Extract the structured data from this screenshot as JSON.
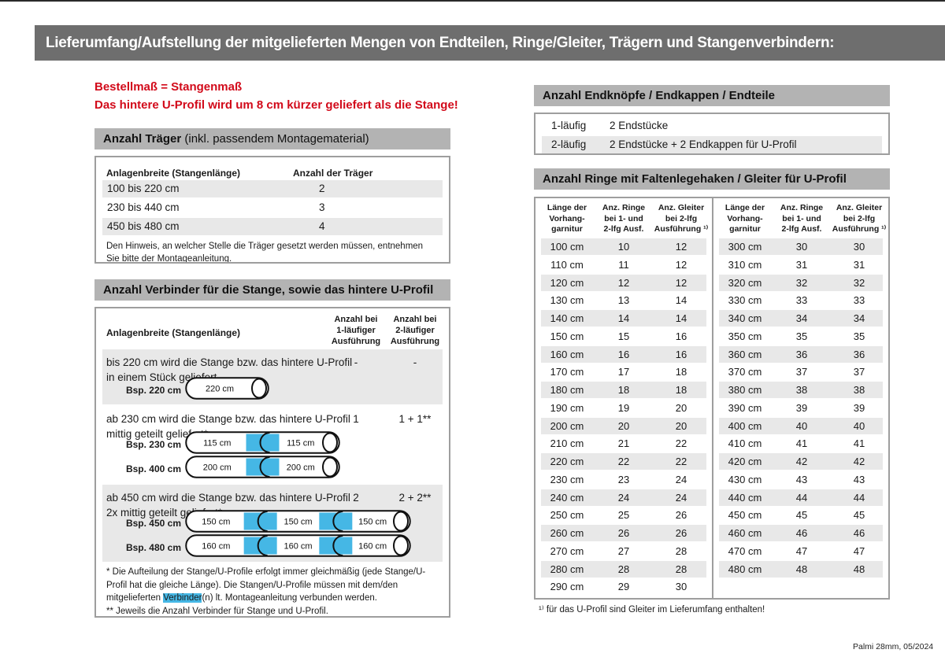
{
  "banner": {
    "title": "Lieferumfang/Aufstellung der mitgelieferten Mengen von Endteilen, Ringe/Gleiter, Trägern und Stangenverbindern:"
  },
  "colors": {
    "banner_gray": "#6e6e6e",
    "section_bar_gray": "#b3b3b3",
    "row_stripe_gray": "#e8e8e8",
    "accent_red": "#d20a1a",
    "connector_blue": "#45b7e5",
    "box_border_gray": "#9e9e9e"
  },
  "left": {
    "notice_line1": "Bestellmaß = Stangenmaß",
    "notice_line2": "Das hintere U-Profil wird um 8 cm kürzer geliefert als die Stange!",
    "traeger": {
      "header_bold": "Anzahl Träger",
      "header_rest": " (inkl. passendem Montagematerial)",
      "col1": "Anlagenbreite (Stangenlänge)",
      "col2": "Anzahl der Träger",
      "rows": [
        [
          "100 bis 220 cm",
          "2"
        ],
        [
          "230 bis 440 cm",
          "3"
        ],
        [
          "450 bis 480 cm",
          "4"
        ]
      ],
      "note": "Den Hinweis, an welcher Stelle die Träger gesetzt werden müssen, entnehmen Sie bitte der Montageanleitung."
    },
    "verbinder": {
      "header": "Anzahl Verbinder für die Stange, sowie das hintere U-Profil",
      "col1": "Anlagenbreite (Stangenlänge)",
      "col2": "Anzahl bei\n1-läufiger\nAusführung",
      "col3": "Anzahl bei\n2-läufiger\nAusführung",
      "rows": [
        {
          "text_line1": "bis 220 cm wird die Stange bzw. das hintere U-Profil",
          "text_line2": "in einem Stück geliefert",
          "val1": "-",
          "val2": "-",
          "rods": [
            {
              "label": "Bsp. 220 cm",
              "segments": [
                "220 cm"
              ]
            }
          ]
        },
        {
          "text_line1": "ab 230 cm wird die Stange bzw. das hintere U-Profil",
          "text_line2": "mittig geteilt geliefert*",
          "val1": "1",
          "val2": "1 + 1**",
          "rods": [
            {
              "label": "Bsp. 230 cm",
              "segments": [
                "115 cm",
                "115 cm"
              ]
            },
            {
              "label": "Bsp. 400 cm",
              "segments": [
                "200 cm",
                "200 cm"
              ]
            }
          ]
        },
        {
          "text_line1": "ab 450 cm wird die Stange bzw. das hintere U-Profil",
          "text_line2": "2x mittig geteilt geliefert*",
          "val1": "2",
          "val2": "2 + 2**",
          "rods": [
            {
              "label": "Bsp. 450 cm",
              "segments": [
                "150 cm",
                "150 cm",
                "150 cm"
              ]
            },
            {
              "label": "Bsp. 480 cm",
              "segments": [
                "160 cm",
                "160 cm",
                "160 cm"
              ]
            }
          ]
        }
      ],
      "footnote1_pre": "* Die Aufteilung der Stange/U-Profile erfolgt immer gleichmäßig (jede Stange/U-Profil hat die gleiche Länge). Die Stangen/U-Profile müssen mit dem/den mitgelieferten ",
      "footnote1_highlight": "Verbinder",
      "footnote1_post": "(n) lt. Montageanleitung verbunden werden.",
      "footnote2": "** Jeweils die Anzahl Verbinder für Stange und U-Profil."
    }
  },
  "right": {
    "endteile": {
      "header": "Anzahl Endknöpfe / Endkappen / Endteile",
      "rows": [
        [
          "1-läufig",
          "2 Endstücke"
        ],
        [
          "2-läufig",
          "2 Endstücke + 2 Endkappen für U-Profil"
        ]
      ]
    },
    "ringe": {
      "header": "Anzahl Ringe mit Faltenlegehaken / Gleiter für U-Profil",
      "col_headers": [
        "Länge der\nVorhang-\ngarnitur",
        "Anz. Ringe\nbei 1- und\n2-lfg Ausf.",
        "Anz. Gleiter\nbei 2-lfg\nAusführung ¹⁾"
      ],
      "left_rows": [
        [
          "100 cm",
          10,
          12
        ],
        [
          "110 cm",
          11,
          12
        ],
        [
          "120 cm",
          12,
          12
        ],
        [
          "130 cm",
          13,
          14
        ],
        [
          "140 cm",
          14,
          14
        ],
        [
          "150 cm",
          15,
          16
        ],
        [
          "160 cm",
          16,
          16
        ],
        [
          "170 cm",
          17,
          18
        ],
        [
          "180 cm",
          18,
          18
        ],
        [
          "190 cm",
          19,
          20
        ],
        [
          "200 cm",
          20,
          20
        ],
        [
          "210 cm",
          21,
          22
        ],
        [
          "220 cm",
          22,
          22
        ],
        [
          "230 cm",
          23,
          24
        ],
        [
          "240 cm",
          24,
          24
        ],
        [
          "250 cm",
          25,
          26
        ],
        [
          "260 cm",
          26,
          26
        ],
        [
          "270 cm",
          27,
          28
        ],
        [
          "280 cm",
          28,
          28
        ],
        [
          "290 cm",
          29,
          30
        ]
      ],
      "right_rows": [
        [
          "300 cm",
          30,
          30
        ],
        [
          "310 cm",
          31,
          31
        ],
        [
          "320 cm",
          32,
          32
        ],
        [
          "330 cm",
          33,
          33
        ],
        [
          "340 cm",
          34,
          34
        ],
        [
          "350 cm",
          35,
          35
        ],
        [
          "360 cm",
          36,
          36
        ],
        [
          "370 cm",
          37,
          37
        ],
        [
          "380 cm",
          38,
          38
        ],
        [
          "390 cm",
          39,
          39
        ],
        [
          "400 cm",
          40,
          40
        ],
        [
          "410 cm",
          41,
          41
        ],
        [
          "420 cm",
          42,
          42
        ],
        [
          "430 cm",
          43,
          43
        ],
        [
          "440 cm",
          44,
          44
        ],
        [
          "450 cm",
          45,
          45
        ],
        [
          "460 cm",
          46,
          46
        ],
        [
          "470 cm",
          47,
          47
        ],
        [
          "480 cm",
          48,
          48
        ]
      ],
      "footnote": "¹⁾ für das U-Profil sind Gleiter im Lieferumfang enthalten!"
    }
  },
  "footer": "Palmi 28mm, 05/2024"
}
